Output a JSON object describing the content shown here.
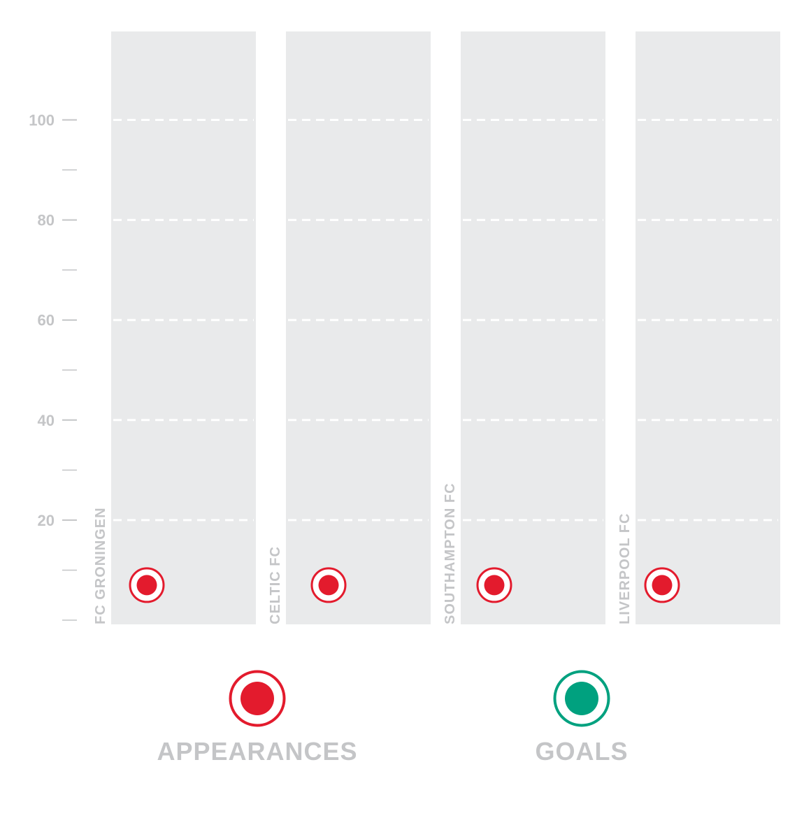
{
  "chart_data": {
    "type": "scatter",
    "title": "",
    "ylabel": "",
    "ylim": [
      0,
      120
    ],
    "yticks": [
      20,
      40,
      60,
      80,
      100
    ],
    "yticks_minor": [
      0,
      10,
      30,
      50,
      70,
      90
    ],
    "grid": true,
    "legend_position": "bottom",
    "categories": [
      "FC GRONINGEN",
      "CELTIC FC",
      "SOUTHAMPTON FC",
      "LIVERPOOL FC"
    ],
    "series": [
      {
        "name": "APPEARANCES",
        "color": "#e31b2d",
        "values": [
          7,
          7,
          7,
          7
        ]
      },
      {
        "name": "GOALS",
        "color": "#00a17f",
        "values": []
      }
    ]
  },
  "colors": {
    "panel": "#e9eaeb",
    "text": "#c4c5c7",
    "axis": "#c4c5c7",
    "grid": "#ffffff"
  }
}
